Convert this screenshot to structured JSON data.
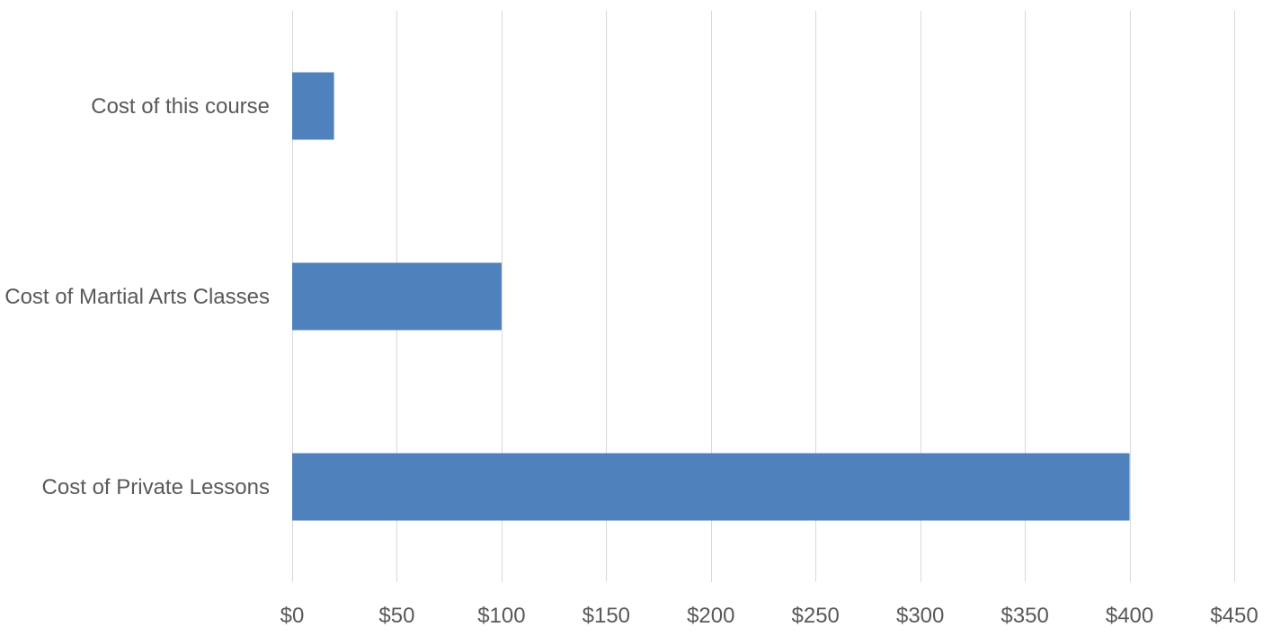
{
  "chart_data": {
    "type": "bar",
    "orientation": "horizontal",
    "categories": [
      "Cost of this course",
      "Cost of Martial Arts Classes",
      "Cost of Private Lessons"
    ],
    "values": [
      20,
      100,
      400
    ],
    "xlim": [
      0,
      450
    ],
    "x_ticks": [
      0,
      50,
      100,
      150,
      200,
      250,
      300,
      350,
      400,
      450
    ],
    "x_tick_labels": [
      "$0",
      "$50",
      "$100",
      "$150",
      "$200",
      "$250",
      "$300",
      "$350",
      "$400",
      "$450"
    ],
    "title": "",
    "xlabel": "",
    "ylabel": "",
    "grid": "vertical major gridlines",
    "legend": "none",
    "colors": {
      "bar": "#4f81bd",
      "grid": "#d9d9d9",
      "text": "#595959"
    }
  }
}
